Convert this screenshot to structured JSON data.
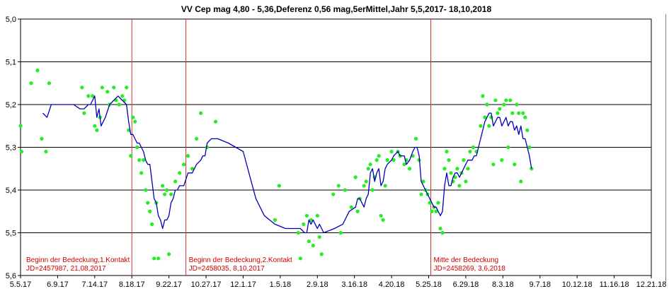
{
  "chart_data": {
    "type": "scatter",
    "title": "VV Cep mag 4,80 - 5,36,Deferenz 0,56 mag,5erMittel,Jahr 5,5,2017- 18,10,2018",
    "xlabel": "",
    "ylabel": "",
    "ylim": [
      5.0,
      5.6
    ],
    "y_inverted": true,
    "grid": "horizontal",
    "y_ticks": [
      "5,0",
      "5,1",
      "5,2",
      "5,3",
      "5,4",
      "5,5",
      "5,6"
    ],
    "x_ticks": [
      "5.5.17",
      "6.9.17",
      "7.14.17",
      "8.18.17",
      "9.22.17",
      "10.27.17",
      "12.1.17",
      "1.5.18",
      "2.9.18",
      "3.16.18",
      "4.20.18",
      "5.25.18",
      "6.29.18",
      "8.3.18",
      "9.7.18",
      "10.12.18",
      "11.16.18",
      "12.21.18"
    ],
    "x_range_days": [
      0,
      595
    ],
    "colors": {
      "points": "#22ee22",
      "line": "#0000bb",
      "markers": "#cc3333",
      "grid": "#000000"
    },
    "series": [
      {
        "kind": "scatter",
        "points": [
          [
            0,
            5.25
          ],
          [
            1,
            5.31
          ],
          [
            10,
            5.15
          ],
          [
            16,
            5.12
          ],
          [
            20,
            5.28
          ],
          [
            24,
            5.31
          ],
          [
            27,
            5.15
          ],
          [
            58,
            5.16
          ],
          [
            60,
            5.22
          ],
          [
            64,
            5.18
          ],
          [
            68,
            5.18
          ],
          [
            70,
            5.25
          ],
          [
            72,
            5.26
          ],
          [
            75,
            5.23
          ],
          [
            77,
            5.16
          ],
          [
            82,
            5.17
          ],
          [
            84,
            5.2
          ],
          [
            88,
            5.16
          ],
          [
            90,
            5.19
          ],
          [
            93,
            5.2
          ],
          [
            96,
            5.18
          ],
          [
            98,
            5.19
          ],
          [
            100,
            5.16
          ],
          [
            102,
            5.26
          ],
          [
            104,
            5.32
          ],
          [
            106,
            5.23
          ],
          [
            108,
            5.24
          ],
          [
            110,
            5.3
          ],
          [
            112,
            5.33
          ],
          [
            114,
            5.36
          ],
          [
            116,
            5.33
          ],
          [
            118,
            5.4
          ],
          [
            120,
            5.43
          ],
          [
            122,
            5.45
          ],
          [
            124,
            5.48
          ],
          [
            126,
            5.56
          ],
          [
            128,
            5.43
          ],
          [
            130,
            5.56
          ],
          [
            134,
            5.39
          ],
          [
            136,
            5.41
          ],
          [
            138,
            5.4
          ],
          [
            140,
            5.55
          ],
          [
            142,
            5.41
          ],
          [
            146,
            5.38
          ],
          [
            150,
            5.36
          ],
          [
            154,
            5.34
          ],
          [
            158,
            5.32
          ],
          [
            162,
            5.35
          ],
          [
            166,
            5.28
          ],
          [
            170,
            5.22
          ],
          [
            176,
            5.3
          ],
          [
            184,
            5.24
          ],
          [
            240,
            5.47
          ],
          [
            244,
            5.39
          ],
          [
            262,
            5.5
          ],
          [
            264,
            5.56
          ],
          [
            267,
            5.48
          ],
          [
            270,
            5.46
          ],
          [
            272,
            5.52
          ],
          [
            274,
            5.47
          ],
          [
            276,
            5.53
          ],
          [
            280,
            5.46
          ],
          [
            282,
            5.51
          ],
          [
            284,
            5.55
          ],
          [
            295,
            5.41
          ],
          [
            300,
            5.39
          ],
          [
            302,
            5.5
          ],
          [
            306,
            5.4
          ],
          [
            312,
            5.44
          ],
          [
            316,
            5.37
          ],
          [
            318,
            5.45
          ],
          [
            320,
            5.42
          ],
          [
            324,
            5.39
          ],
          [
            326,
            5.38
          ],
          [
            328,
            5.35
          ],
          [
            330,
            5.34
          ],
          [
            332,
            5.4
          ],
          [
            334,
            5.37
          ],
          [
            336,
            5.33
          ],
          [
            338,
            5.32
          ],
          [
            340,
            5.46
          ],
          [
            342,
            5.47
          ],
          [
            344,
            5.39
          ],
          [
            346,
            5.33
          ],
          [
            350,
            5.31
          ],
          [
            352,
            5.33
          ],
          [
            356,
            5.31
          ],
          [
            358,
            5.32
          ],
          [
            362,
            5.34
          ],
          [
            364,
            5.33
          ],
          [
            367,
            5.35
          ],
          [
            370,
            5.32
          ],
          [
            373,
            5.28
          ],
          [
            376,
            5.33
          ],
          [
            378,
            5.41
          ],
          [
            380,
            5.38
          ],
          [
            382,
            5.4
          ],
          [
            384,
            5.41
          ],
          [
            386,
            5.43
          ],
          [
            388,
            5.45
          ],
          [
            390,
            5.44
          ],
          [
            392,
            5.45
          ],
          [
            394,
            5.43
          ],
          [
            396,
            5.49
          ],
          [
            398,
            5.5
          ],
          [
            400,
            5.35
          ],
          [
            402,
            5.31
          ],
          [
            404,
            5.33
          ],
          [
            406,
            5.36
          ],
          [
            408,
            5.38
          ],
          [
            410,
            5.37
          ],
          [
            412,
            5.35
          ],
          [
            414,
            5.39
          ],
          [
            416,
            5.36
          ],
          [
            418,
            5.33
          ],
          [
            420,
            5.38
          ],
          [
            422,
            5.35
          ],
          [
            424,
            5.31
          ],
          [
            427,
            5.3
          ],
          [
            430,
            5.31
          ],
          [
            434,
            5.25
          ],
          [
            436,
            5.18
          ],
          [
            438,
            5.23
          ],
          [
            440,
            5.2
          ],
          [
            442,
            5.25
          ],
          [
            444,
            5.23
          ],
          [
            446,
            5.34
          ],
          [
            448,
            5.19
          ],
          [
            450,
            5.22
          ],
          [
            452,
            5.21
          ],
          [
            454,
            5.33
          ],
          [
            456,
            5.2
          ],
          [
            458,
            5.19
          ],
          [
            460,
            5.3
          ],
          [
            462,
            5.19
          ],
          [
            464,
            5.22
          ],
          [
            466,
            5.34
          ],
          [
            468,
            5.2
          ],
          [
            470,
            5.22
          ],
          [
            472,
            5.38
          ],
          [
            474,
            5.22
          ],
          [
            476,
            5.23
          ],
          [
            478,
            5.26
          ],
          [
            480,
            5.3
          ],
          [
            482,
            5.35
          ]
        ]
      },
      {
        "kind": "line",
        "name": "5erMittel",
        "points": [
          [
            21,
            5.22
          ],
          [
            25,
            5.23
          ],
          [
            29,
            5.2
          ],
          [
            50,
            5.2
          ],
          [
            56,
            5.21
          ],
          [
            60,
            5.21
          ],
          [
            64,
            5.2
          ],
          [
            66,
            5.2
          ],
          [
            70,
            5.18
          ],
          [
            72,
            5.23
          ],
          [
            74,
            5.21
          ],
          [
            76,
            5.25
          ],
          [
            78,
            5.24
          ],
          [
            80,
            5.23
          ],
          [
            84,
            5.2
          ],
          [
            88,
            5.19
          ],
          [
            92,
            5.18
          ],
          [
            96,
            5.19
          ],
          [
            100,
            5.2
          ],
          [
            102,
            5.24
          ],
          [
            104,
            5.27
          ],
          [
            106,
            5.27
          ],
          [
            108,
            5.28
          ],
          [
            110,
            5.29
          ],
          [
            112,
            5.29
          ],
          [
            114,
            5.3
          ],
          [
            116,
            5.31
          ],
          [
            118,
            5.33
          ],
          [
            120,
            5.34
          ],
          [
            122,
            5.34
          ],
          [
            124,
            5.38
          ],
          [
            126,
            5.42
          ],
          [
            128,
            5.43
          ],
          [
            130,
            5.46
          ],
          [
            132,
            5.47
          ],
          [
            134,
            5.49
          ],
          [
            136,
            5.47
          ],
          [
            138,
            5.47
          ],
          [
            140,
            5.46
          ],
          [
            142,
            5.43
          ],
          [
            144,
            5.42
          ],
          [
            146,
            5.4
          ],
          [
            148,
            5.4
          ],
          [
            150,
            5.39
          ],
          [
            154,
            5.39
          ],
          [
            158,
            5.36
          ],
          [
            162,
            5.36
          ],
          [
            166,
            5.34
          ],
          [
            170,
            5.33
          ],
          [
            172,
            5.32
          ],
          [
            174,
            5.32
          ],
          [
            176,
            5.29
          ],
          [
            180,
            5.28
          ],
          [
            186,
            5.28
          ],
          [
            196,
            5.29
          ],
          [
            210,
            5.31
          ],
          [
            222,
            5.42
          ],
          [
            230,
            5.46
          ],
          [
            240,
            5.48
          ],
          [
            250,
            5.49
          ],
          [
            258,
            5.49
          ],
          [
            264,
            5.49
          ],
          [
            268,
            5.5
          ],
          [
            270,
            5.5
          ],
          [
            272,
            5.47
          ],
          [
            274,
            5.48
          ],
          [
            276,
            5.47
          ],
          [
            278,
            5.48
          ],
          [
            280,
            5.49
          ],
          [
            282,
            5.48
          ],
          [
            286,
            5.5
          ],
          [
            296,
            5.49
          ],
          [
            304,
            5.48
          ],
          [
            310,
            5.45
          ],
          [
            316,
            5.44
          ],
          [
            318,
            5.42
          ],
          [
            320,
            5.42
          ],
          [
            322,
            5.43
          ],
          [
            324,
            5.44
          ],
          [
            326,
            5.42
          ],
          [
            328,
            5.41
          ],
          [
            330,
            5.36
          ],
          [
            332,
            5.35
          ],
          [
            334,
            5.38
          ],
          [
            336,
            5.36
          ],
          [
            338,
            5.35
          ],
          [
            340,
            5.39
          ],
          [
            342,
            5.38
          ],
          [
            344,
            5.35
          ],
          [
            346,
            5.34
          ],
          [
            350,
            5.33
          ],
          [
            352,
            5.32
          ],
          [
            356,
            5.31
          ],
          [
            358,
            5.32
          ],
          [
            362,
            5.32
          ],
          [
            364,
            5.34
          ],
          [
            367,
            5.33
          ],
          [
            370,
            5.31
          ],
          [
            372,
            5.3
          ],
          [
            374,
            5.3
          ],
          [
            376,
            5.32
          ],
          [
            378,
            5.38
          ],
          [
            380,
            5.39
          ],
          [
            382,
            5.4
          ],
          [
            384,
            5.41
          ],
          [
            386,
            5.42
          ],
          [
            388,
            5.43
          ],
          [
            390,
            5.44
          ],
          [
            392,
            5.44
          ],
          [
            394,
            5.45
          ],
          [
            396,
            5.46
          ],
          [
            398,
            5.45
          ],
          [
            400,
            5.39
          ],
          [
            402,
            5.36
          ],
          [
            404,
            5.39
          ],
          [
            406,
            5.39
          ],
          [
            408,
            5.37
          ],
          [
            410,
            5.36
          ],
          [
            412,
            5.36
          ],
          [
            414,
            5.37
          ],
          [
            416,
            5.36
          ],
          [
            418,
            5.35
          ],
          [
            420,
            5.34
          ],
          [
            422,
            5.33
          ],
          [
            424,
            5.33
          ],
          [
            426,
            5.33
          ],
          [
            428,
            5.32
          ],
          [
            430,
            5.32
          ],
          [
            434,
            5.28
          ],
          [
            436,
            5.26
          ],
          [
            438,
            5.24
          ],
          [
            440,
            5.23
          ],
          [
            442,
            5.22
          ],
          [
            444,
            5.22
          ],
          [
            446,
            5.25
          ],
          [
            448,
            5.24
          ],
          [
            450,
            5.23
          ],
          [
            452,
            5.23
          ],
          [
            454,
            5.25
          ],
          [
            456,
            5.24
          ],
          [
            458,
            5.23
          ],
          [
            460,
            5.25
          ],
          [
            462,
            5.24
          ],
          [
            464,
            5.24
          ],
          [
            466,
            5.26
          ],
          [
            468,
            5.25
          ],
          [
            470,
            5.27
          ],
          [
            472,
            5.25
          ],
          [
            474,
            5.28
          ],
          [
            476,
            5.28
          ],
          [
            478,
            5.3
          ],
          [
            480,
            5.32
          ],
          [
            482,
            5.35
          ]
        ]
      }
    ],
    "markers": [
      {
        "day": 105,
        "label_line1": "Beginn der Bedeckung,1.Kontakt",
        "label_line2": "JD=2457987, 21,08,2017"
      },
      {
        "day": 156,
        "label_line1": "Beginn der Bedeckung,2.Kontakt",
        "label_line2": "JD=2458035, 8,10,2017"
      },
      {
        "day": 387,
        "label_line1": "Mitte der Bedeckung",
        "label_line2": "JD=2458269, 3,6,2018"
      }
    ]
  }
}
